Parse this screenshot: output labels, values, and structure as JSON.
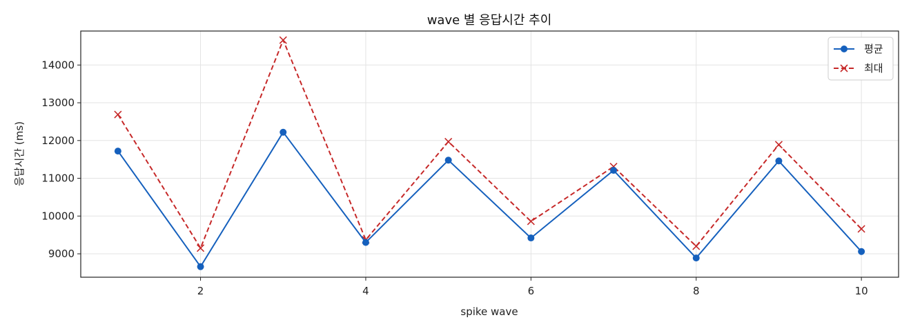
{
  "chart_data": {
    "type": "line",
    "title": "wave 별 응답시간 추이",
    "xlabel": "spike wave",
    "ylabel": "응답시간 (ms)",
    "x": [
      1,
      2,
      3,
      4,
      5,
      6,
      7,
      8,
      9,
      10
    ],
    "xlim": [
      0.55,
      10.45
    ],
    "ylim": [
      8380,
      14900
    ],
    "xticks": [
      2,
      4,
      6,
      8,
      10
    ],
    "yticks": [
      9000,
      10000,
      11000,
      12000,
      13000,
      14000
    ],
    "grid": true,
    "legend_position": "top-right",
    "series": [
      {
        "name": "평균",
        "values": [
          11720,
          8660,
          12220,
          9300,
          11480,
          9420,
          11210,
          8890,
          11460,
          9060
        ],
        "color": "#1560bd",
        "marker": "circle",
        "linestyle": "solid"
      },
      {
        "name": "최대",
        "values": [
          12690,
          9150,
          14660,
          9370,
          11970,
          9860,
          11310,
          9200,
          11890,
          9660
        ],
        "color": "#c62828",
        "marker": "x",
        "linestyle": "dashed"
      }
    ]
  }
}
